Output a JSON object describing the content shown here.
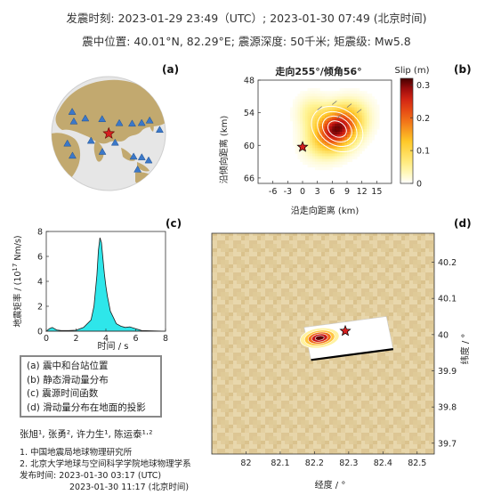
{
  "header": {
    "line1": "发震时刻: 2023-01-29 23:49（UTC）;   2023-01-30  07:49 (北京时间)",
    "line2": "震中位置: 40.01°N,  82.29°E;  震源深度: 50千米; 矩震级: Mw5.8"
  },
  "panels": {
    "a": "(a)",
    "b": "(b)",
    "c": "(c)",
    "d": "(d)"
  },
  "colors": {
    "land": "#c2a96f",
    "ocean": "#e6e6e6",
    "station": "#3b78c9",
    "star": "#d41f1f",
    "stf_fill": "#2ee6ea"
  },
  "chart_data": [
    {
      "type": "map",
      "panel": "a",
      "title": "",
      "epicenter": {
        "lat": 40.01,
        "lon": 82.29
      },
      "stations": [
        {
          "lon": 150,
          "lat": 35
        },
        {
          "lon": 160,
          "lat": 15
        },
        {
          "lon": 100,
          "lat": 50
        },
        {
          "lon": 120,
          "lat": 45
        },
        {
          "lon": 135,
          "lat": 40
        },
        {
          "lon": 70,
          "lat": 55
        },
        {
          "lon": 40,
          "lat": 50
        },
        {
          "lon": 25,
          "lat": 40
        },
        {
          "lon": 10,
          "lat": 45
        },
        {
          "lon": 30,
          "lat": 15
        },
        {
          "lon": 40,
          "lat": 5
        },
        {
          "lon": 75,
          "lat": 20
        },
        {
          "lon": 110,
          "lat": 10
        },
        {
          "lon": 120,
          "lat": 5
        },
        {
          "lon": 115,
          "lat": -10
        },
        {
          "lon": 130,
          "lat": -5
        },
        {
          "lon": 90,
          "lat": 30
        },
        {
          "lon": 60,
          "lat": 30
        }
      ]
    },
    {
      "type": "heatmap",
      "panel": "b",
      "title": "走向255°/倾角56°",
      "xlabel": "沿走向距离 (km)",
      "ylabel": "沿倾向距离 (km)",
      "xlim": [
        -9,
        18
      ],
      "ylim": [
        48,
        67
      ],
      "xticks": [
        -6,
        -3,
        0,
        3,
        6,
        9,
        12,
        15
      ],
      "yticks": [
        48,
        54,
        60,
        66
      ],
      "colorbar": {
        "label": "Slip (m)",
        "range": [
          0,
          0.32
        ],
        "ticks": [
          0,
          0.1,
          0.2,
          0.3
        ]
      },
      "hypocenter": {
        "x": 0,
        "y": 60.3
      },
      "max_slip": {
        "x": 7,
        "y": 57,
        "value": 0.31
      }
    },
    {
      "type": "area",
      "panel": "c",
      "title": "",
      "xlabel": "时间 / s",
      "ylabel": "地震矩率 / (10",
      "ylabel_exp": "17",
      "ylabel_tail": " Nm/s)",
      "xlim": [
        0,
        8
      ],
      "ylim": [
        0,
        8
      ],
      "xticks": [
        0,
        2,
        4,
        6,
        8
      ],
      "yticks": [
        0,
        2,
        4,
        6,
        8
      ],
      "x": [
        0,
        0.2,
        0.4,
        0.7,
        1.0,
        1.5,
        2.0,
        2.5,
        3.0,
        3.2,
        3.4,
        3.5,
        3.6,
        3.7,
        3.8,
        3.9,
        4.0,
        4.1,
        4.2,
        4.3,
        4.5,
        4.7,
        5.0,
        5.3,
        5.6,
        6.0,
        6.4,
        8.0
      ],
      "y": [
        0,
        0.2,
        0.3,
        0.1,
        0.05,
        0.05,
        0.08,
        0.3,
        0.9,
        2.0,
        4.5,
        6.5,
        7.5,
        7.1,
        5.8,
        4.6,
        3.6,
        2.8,
        2.2,
        1.6,
        1.1,
        0.6,
        0.4,
        0.3,
        0.35,
        0.2,
        0.05,
        0
      ]
    },
    {
      "type": "map",
      "panel": "d",
      "title": "",
      "xlabel": "经度 / °",
      "ylabel": "纬度 / °",
      "xlim": [
        81.9,
        82.55
      ],
      "ylim": [
        39.67,
        40.28
      ],
      "xticks": [
        82,
        82.1,
        82.2,
        82.3,
        82.4,
        82.5
      ],
      "yticks": [
        39.7,
        39.8,
        39.9,
        40,
        40.1,
        40.2
      ],
      "epicenter": {
        "lon": 82.29,
        "lat": 40.01
      },
      "slip_center": {
        "lon": 82.21,
        "lat": 39.99
      },
      "fault_plane": [
        [
          82.17,
          40.02
        ],
        [
          82.41,
          40.05
        ],
        [
          82.43,
          39.96
        ],
        [
          82.19,
          39.93
        ]
      ]
    }
  ],
  "legend": {
    "items": [
      "(a) 震中和台站位置",
      "(b) 静态滑动量分布",
      "(c) 震源时间函数",
      "(d) 滑动量分布在地面的投影"
    ]
  },
  "credits": {
    "authors": "张旭¹, 张勇², 许力生¹, 陈运泰¹·²",
    "affil1": "1. 中国地震局地球物理研究所",
    "affil2": "2. 北京大学地球与空间科学学院地球物理学系",
    "pub_label": "发布时间: ",
    "pub_utc": "2023-01-30  03:17 (UTC)",
    "pub_bj": "2023-01-30  11:17 (北京时间)"
  }
}
